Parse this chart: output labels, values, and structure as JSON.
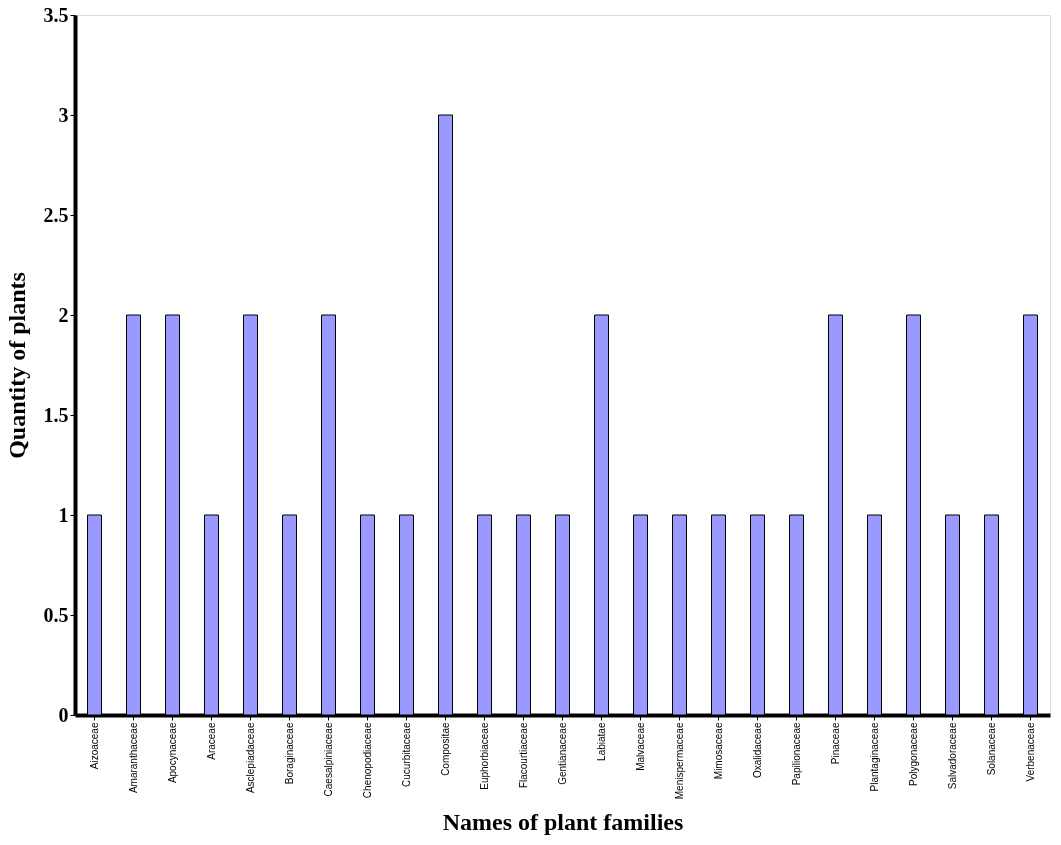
{
  "chart_data": {
    "type": "bar",
    "xlabel": "Names of plant families",
    "ylabel": "Quantity of plants",
    "categories": [
      "Aizoaceae",
      "Amaranthaceae",
      "Apocynaceae",
      "Araceae",
      "Asclepiadaceae",
      "Boraginaceae",
      "Caesalpiniaceae",
      "Chenopodiaceae",
      "Cucurbitaceae",
      "Compositae",
      "Euphorbiaceae",
      "Flacourtiaceae",
      "Gentianaceae",
      "Labiatae",
      "Malvaceae",
      "Menispermaceae",
      "Mimosaceae",
      "Oxalidaceae",
      "Papilionaceae",
      "Pinaceae",
      "Plantaginaceae",
      "Polygonaceae",
      "Salvadoraceae",
      "Solanaceae",
      "Verbenaceae"
    ],
    "values": [
      1,
      2,
      2,
      1,
      2,
      1,
      2,
      1,
      1,
      3,
      1,
      1,
      1,
      2,
      1,
      1,
      1,
      1,
      1,
      2,
      1,
      2,
      1,
      1,
      2
    ],
    "color": "#9999ff",
    "ylim": [
      0,
      3.5
    ],
    "yticks": [
      0,
      0.5,
      1,
      1.5,
      2,
      2.5,
      3,
      3.5
    ],
    "grid": false
  }
}
